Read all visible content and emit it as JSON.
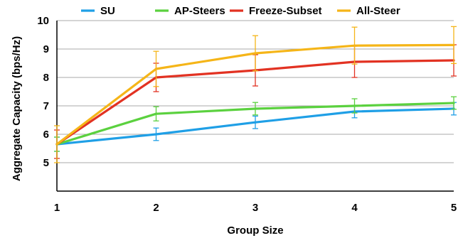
{
  "chart_data": {
    "type": "line",
    "title": "",
    "xlabel": "Group Size",
    "ylabel": "Aggregate Capacity (bps/Hz)",
    "x": [
      1,
      2,
      3,
      4,
      5
    ],
    "x_tick_labels": [
      "1",
      "2",
      "3",
      "4",
      "5"
    ],
    "y_ticks": [
      5,
      6,
      7,
      8,
      9,
      10
    ],
    "y_tick_labels": [
      "5",
      "6",
      "7",
      "8",
      "9",
      "10"
    ],
    "ylim": [
      4,
      10
    ],
    "xlim": [
      1,
      5
    ],
    "grid": "horizontal",
    "legend_position": "top",
    "error_bars": true,
    "series": [
      {
        "name": "SU",
        "color": "#1f9fe6",
        "values": [
          5.65,
          6.0,
          6.42,
          6.8,
          6.9
        ],
        "error": [
          0.25,
          0.22,
          0.22,
          0.22,
          0.22
        ]
      },
      {
        "name": "AP-Steers",
        "color": "#5bd13f",
        "values": [
          5.65,
          6.72,
          6.9,
          7.0,
          7.1
        ],
        "error": [
          0.25,
          0.25,
          0.22,
          0.25,
          0.22
        ]
      },
      {
        "name": "Freeze-Subset",
        "color": "#e23222",
        "values": [
          5.65,
          8.0,
          8.25,
          8.55,
          8.6
        ],
        "error": [
          0.5,
          0.5,
          0.55,
          0.55,
          0.55
        ]
      },
      {
        "name": "All-Steer",
        "color": "#f5b518",
        "values": [
          5.65,
          8.3,
          8.85,
          9.12,
          9.14
        ],
        "error": [
          0.65,
          0.62,
          0.62,
          0.65,
          0.65
        ]
      }
    ]
  }
}
